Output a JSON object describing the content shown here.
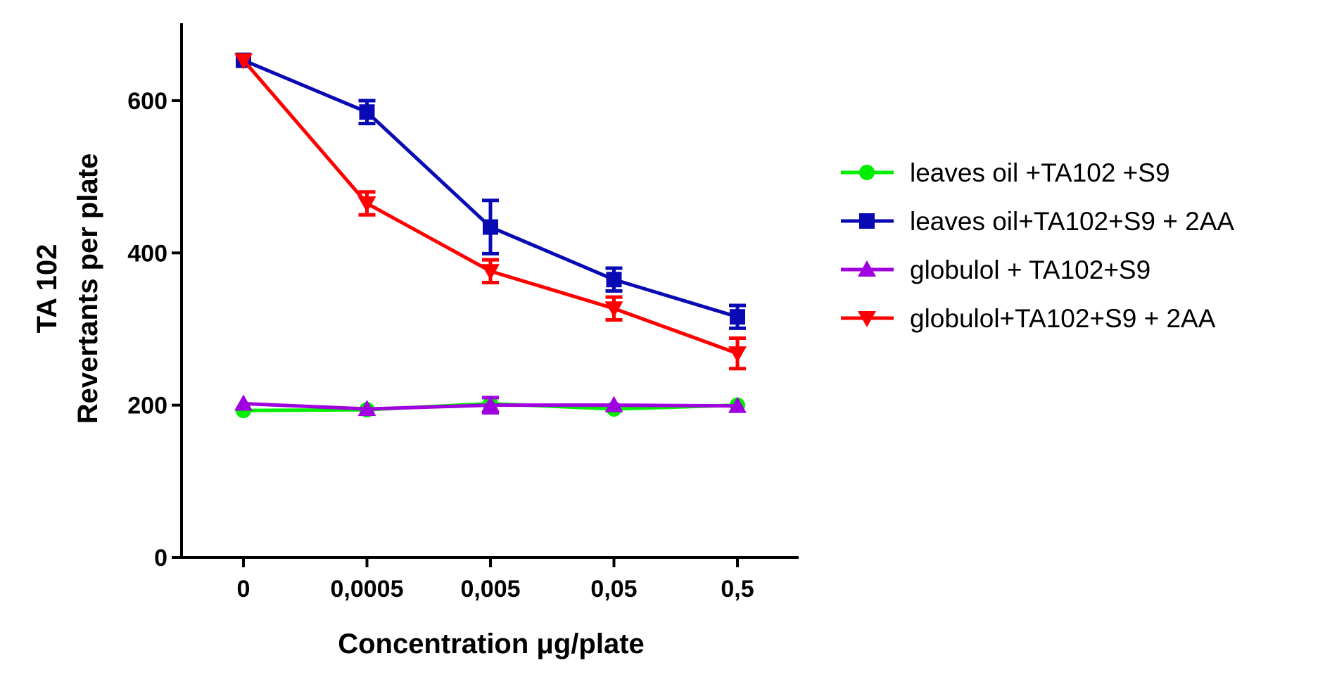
{
  "chart_data": {
    "type": "line",
    "title": "",
    "xlabel": "Concentration μg/plate",
    "ylabel_line1": "TA 102",
    "ylabel_line2": "Revertants per plate",
    "categories": [
      "0",
      "0,0005",
      "0,005",
      "0,05",
      "0,5"
    ],
    "yticks": [
      0,
      200,
      400,
      600
    ],
    "ylim": [
      0,
      700
    ],
    "legend_position": "right",
    "series": [
      {
        "name": "leaves oil +TA102 +S9",
        "color": "#00ee00",
        "marker": "circle",
        "values": [
          193,
          194,
          202,
          195,
          200
        ],
        "errors": [
          0,
          0,
          0,
          0,
          0
        ]
      },
      {
        "name": "leaves oil+TA102+S9 + 2AA",
        "color": "#0a0ab4",
        "marker": "square",
        "values": [
          653,
          585,
          434,
          365,
          316
        ],
        "errors": [
          0,
          15,
          35,
          15,
          15
        ]
      },
      {
        "name": "globulol + TA102+S9",
        "color": "#a000e0",
        "marker": "triangle-up",
        "values": [
          202,
          195,
          200,
          200,
          199
        ],
        "errors": [
          0,
          0,
          10,
          0,
          0
        ]
      },
      {
        "name": "globulol+TA102+S9 + 2AA",
        "color": "#ff0000",
        "marker": "triangle-down",
        "values": [
          653,
          465,
          376,
          327,
          268
        ],
        "errors": [
          0,
          15,
          15,
          15,
          20
        ]
      }
    ]
  }
}
